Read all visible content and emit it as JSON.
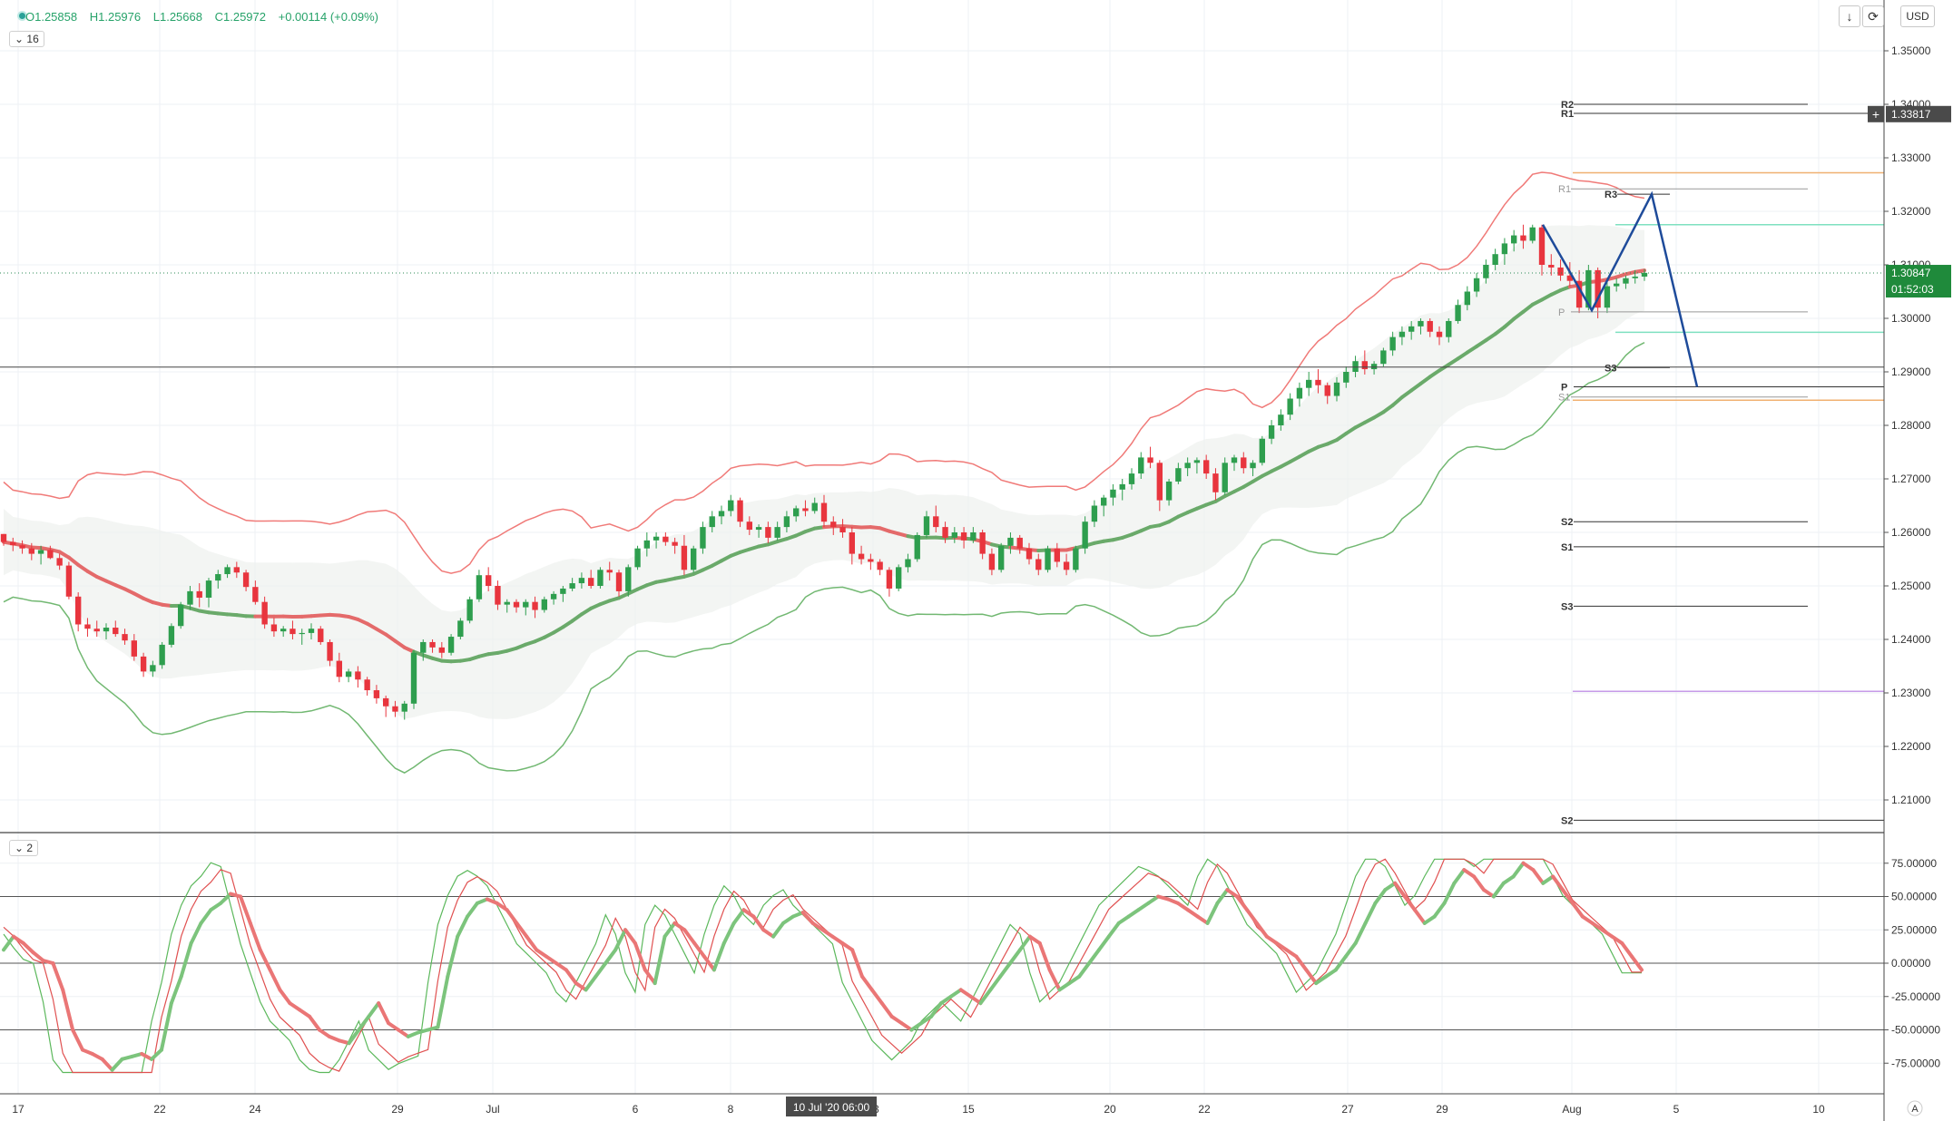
{
  "header": {
    "open": "O1.25858",
    "high": "H1.25976",
    "low": "L1.25668",
    "close": "C1.25972",
    "change": "+0.00114 (+0.09%)",
    "main_pane_toggle": "16",
    "osc_pane_toggle": "2",
    "currency": "USD",
    "crosshair_time": "10 Jul '20   06:00",
    "axis_button": "A"
  },
  "colors": {
    "bull": "#2e9e4e",
    "bear": "#e8353e",
    "upper_band": "#f07a78",
    "lower_band": "#72b872",
    "basis_green": "#6aaa6a",
    "basis_red": "#e46a6a",
    "pattern": "#1e4b9a",
    "orange": "#f0b070",
    "teal": "#7ee0c0",
    "violet": "#c79be8"
  },
  "chart_data": {
    "type": "candlestick",
    "symbol_quote": "USD",
    "price_range": [
      1.2,
      1.355
    ],
    "price_ticks": [
      "1.35000",
      "1.34000",
      "1.33000",
      "1.32000",
      "1.31000",
      "1.30000",
      "1.29000",
      "1.28000",
      "1.27000",
      "1.26000",
      "1.25000",
      "1.24000",
      "1.23000",
      "1.22000",
      "1.21000"
    ],
    "x_ticks": [
      "17",
      "22",
      "24",
      "29",
      "Jul",
      "6",
      "8",
      "13",
      "15",
      "20",
      "22",
      "27",
      "29",
      "Aug",
      "5",
      "10"
    ],
    "current_price": "1.30847",
    "countdown": "01:52:03",
    "crosshair_price": "1.33817",
    "candles": [
      [
        1.2597,
        1.2597,
        1.2575,
        1.2582
      ],
      [
        1.2582,
        1.259,
        1.2565,
        1.2576
      ],
      [
        1.2576,
        1.2585,
        1.256,
        1.257
      ],
      [
        1.257,
        1.258,
        1.2548,
        1.256
      ],
      [
        1.256,
        1.2575,
        1.254,
        1.2567
      ],
      [
        1.2567,
        1.2575,
        1.255,
        1.2552
      ],
      [
        1.2552,
        1.256,
        1.253,
        1.2538
      ],
      [
        1.2538,
        1.2545,
        1.2475,
        1.248
      ],
      [
        1.248,
        1.2488,
        1.2415,
        1.2428
      ],
      [
        1.2428,
        1.244,
        1.2405,
        1.242
      ],
      [
        1.242,
        1.2435,
        1.2405,
        1.2415
      ],
      [
        1.2415,
        1.243,
        1.24,
        1.2422
      ],
      [
        1.2422,
        1.2435,
        1.2405,
        1.241
      ],
      [
        1.241,
        1.242,
        1.239,
        1.2398
      ],
      [
        1.2398,
        1.241,
        1.236,
        1.2368
      ],
      [
        1.2368,
        1.2375,
        1.233,
        1.234
      ],
      [
        1.234,
        1.236,
        1.233,
        1.2352
      ],
      [
        1.2352,
        1.2395,
        1.2345,
        1.239
      ],
      [
        1.239,
        1.243,
        1.2385,
        1.2425
      ],
      [
        1.2425,
        1.247,
        1.242,
        1.2465
      ],
      [
        1.2465,
        1.25,
        1.2455,
        1.249
      ],
      [
        1.249,
        1.2505,
        1.246,
        1.2478
      ],
      [
        1.2478,
        1.2515,
        1.246,
        1.251
      ],
      [
        1.251,
        1.253,
        1.2495,
        1.2522
      ],
      [
        1.2522,
        1.254,
        1.2515,
        1.2535
      ],
      [
        1.2535,
        1.2545,
        1.2515,
        1.2525
      ],
      [
        1.2525,
        1.253,
        1.249,
        1.2498
      ],
      [
        1.2498,
        1.251,
        1.2465,
        1.247
      ],
      [
        1.247,
        1.248,
        1.242,
        1.2428
      ],
      [
        1.2428,
        1.244,
        1.2405,
        1.2415
      ],
      [
        1.2415,
        1.2425,
        1.2405,
        1.242
      ],
      [
        1.242,
        1.2435,
        1.24,
        1.241
      ],
      [
        1.241,
        1.242,
        1.239,
        1.2412
      ],
      [
        1.2412,
        1.243,
        1.24,
        1.242
      ],
      [
        1.242,
        1.2425,
        1.239,
        1.2395
      ],
      [
        1.2395,
        1.24,
        1.235,
        1.236
      ],
      [
        1.236,
        1.2375,
        1.232,
        1.233
      ],
      [
        1.233,
        1.2345,
        1.232,
        1.234
      ],
      [
        1.234,
        1.235,
        1.231,
        1.2325
      ],
      [
        1.2325,
        1.233,
        1.2295,
        1.2305
      ],
      [
        1.2305,
        1.2315,
        1.228,
        1.229
      ],
      [
        1.229,
        1.2295,
        1.2255,
        1.2275
      ],
      [
        1.2275,
        1.2285,
        1.2255,
        1.2265
      ],
      [
        1.2265,
        1.2285,
        1.225,
        1.228
      ],
      [
        1.228,
        1.238,
        1.227,
        1.2375
      ],
      [
        1.2375,
        1.24,
        1.236,
        1.2395
      ],
      [
        1.2395,
        1.24,
        1.2375,
        1.2385
      ],
      [
        1.2385,
        1.2395,
        1.2365,
        1.2375
      ],
      [
        1.2375,
        1.241,
        1.237,
        1.2405
      ],
      [
        1.2405,
        1.244,
        1.24,
        1.2435
      ],
      [
        1.2435,
        1.248,
        1.243,
        1.2475
      ],
      [
        1.2475,
        1.253,
        1.247,
        1.252
      ],
      [
        1.252,
        1.2535,
        1.249,
        1.25
      ],
      [
        1.25,
        1.251,
        1.2455,
        1.2465
      ],
      [
        1.2465,
        1.2475,
        1.245,
        1.247
      ],
      [
        1.247,
        1.2475,
        1.245,
        1.246
      ],
      [
        1.246,
        1.2475,
        1.2445,
        1.247
      ],
      [
        1.247,
        1.248,
        1.244,
        1.2455
      ],
      [
        1.2455,
        1.248,
        1.245,
        1.2475
      ],
      [
        1.2475,
        1.249,
        1.2465,
        1.2485
      ],
      [
        1.2485,
        1.25,
        1.247,
        1.2495
      ],
      [
        1.2495,
        1.2515,
        1.249,
        1.2505
      ],
      [
        1.2505,
        1.2525,
        1.2495,
        1.2515
      ],
      [
        1.2515,
        1.253,
        1.2495,
        1.25
      ],
      [
        1.25,
        1.2535,
        1.2495,
        1.253
      ],
      [
        1.253,
        1.2545,
        1.251,
        1.2525
      ],
      [
        1.2525,
        1.253,
        1.248,
        1.249
      ],
      [
        1.249,
        1.254,
        1.248,
        1.2535
      ],
      [
        1.2535,
        1.2575,
        1.253,
        1.257
      ],
      [
        1.257,
        1.26,
        1.2555,
        1.2585
      ],
      [
        1.2585,
        1.26,
        1.257,
        1.2592
      ],
      [
        1.2592,
        1.26,
        1.2575,
        1.2582
      ],
      [
        1.2582,
        1.259,
        1.256,
        1.2575
      ],
      [
        1.2575,
        1.2595,
        1.252,
        1.253
      ],
      [
        1.253,
        1.2575,
        1.2525,
        1.257
      ],
      [
        1.257,
        1.262,
        1.256,
        1.261
      ],
      [
        1.261,
        1.264,
        1.26,
        1.263
      ],
      [
        1.263,
        1.265,
        1.2615,
        1.264
      ],
      [
        1.264,
        1.267,
        1.263,
        1.266
      ],
      [
        1.266,
        1.2665,
        1.261,
        1.262
      ],
      [
        1.262,
        1.263,
        1.2595,
        1.2605
      ],
      [
        1.2605,
        1.2615,
        1.259,
        1.261
      ],
      [
        1.261,
        1.262,
        1.258,
        1.259
      ],
      [
        1.259,
        1.262,
        1.2585,
        1.261
      ],
      [
        1.261,
        1.264,
        1.26,
        1.263
      ],
      [
        1.263,
        1.265,
        1.262,
        1.2645
      ],
      [
        1.2645,
        1.266,
        1.263,
        1.264
      ],
      [
        1.264,
        1.2665,
        1.2635,
        1.2655
      ],
      [
        1.2655,
        1.267,
        1.261,
        1.262
      ],
      [
        1.262,
        1.263,
        1.2595,
        1.261
      ],
      [
        1.261,
        1.2625,
        1.259,
        1.26
      ],
      [
        1.26,
        1.261,
        1.254,
        1.256
      ],
      [
        1.256,
        1.2575,
        1.254,
        1.255
      ],
      [
        1.255,
        1.256,
        1.253,
        1.2545
      ],
      [
        1.2545,
        1.255,
        1.252,
        1.253
      ],
      [
        1.253,
        1.2535,
        1.248,
        1.2495
      ],
      [
        1.2495,
        1.254,
        1.249,
        1.2535
      ],
      [
        1.2535,
        1.256,
        1.2525,
        1.255
      ],
      [
        1.255,
        1.26,
        1.2545,
        1.2595
      ],
      [
        1.2595,
        1.264,
        1.259,
        1.263
      ],
      [
        1.263,
        1.265,
        1.26,
        1.261
      ],
      [
        1.261,
        1.262,
        1.258,
        1.259
      ],
      [
        1.259,
        1.261,
        1.258,
        1.26
      ],
      [
        1.26,
        1.261,
        1.257,
        1.2585
      ],
      [
        1.2585,
        1.261,
        1.258,
        1.26
      ],
      [
        1.26,
        1.2605,
        1.255,
        1.256
      ],
      [
        1.256,
        1.257,
        1.252,
        1.253
      ],
      [
        1.253,
        1.258,
        1.2525,
        1.2575
      ],
      [
        1.2575,
        1.26,
        1.256,
        1.259
      ],
      [
        1.259,
        1.2595,
        1.256,
        1.257
      ],
      [
        1.257,
        1.258,
        1.254,
        1.255
      ],
      [
        1.255,
        1.256,
        1.252,
        1.253
      ],
      [
        1.253,
        1.2575,
        1.2525,
        1.257
      ],
      [
        1.257,
        1.258,
        1.2535,
        1.2545
      ],
      [
        1.2545,
        1.256,
        1.252,
        1.253
      ],
      [
        1.253,
        1.2575,
        1.2525,
        1.257
      ],
      [
        1.257,
        1.263,
        1.256,
        1.262
      ],
      [
        1.262,
        1.266,
        1.261,
        1.265
      ],
      [
        1.265,
        1.267,
        1.263,
        1.2665
      ],
      [
        1.2665,
        1.269,
        1.265,
        1.268
      ],
      [
        1.268,
        1.27,
        1.266,
        1.269
      ],
      [
        1.269,
        1.272,
        1.268,
        1.271
      ],
      [
        1.271,
        1.275,
        1.27,
        1.274
      ],
      [
        1.274,
        1.276,
        1.272,
        1.273
      ],
      [
        1.273,
        1.2735,
        1.264,
        1.266
      ],
      [
        1.266,
        1.27,
        1.265,
        1.2695
      ],
      [
        1.2695,
        1.273,
        1.269,
        1.272
      ],
      [
        1.272,
        1.274,
        1.2705,
        1.273
      ],
      [
        1.273,
        1.274,
        1.271,
        1.2735
      ],
      [
        1.2735,
        1.2745,
        1.27,
        1.271
      ],
      [
        1.271,
        1.272,
        1.266,
        1.2675
      ],
      [
        1.2675,
        1.274,
        1.267,
        1.273
      ],
      [
        1.273,
        1.2745,
        1.2715,
        1.274
      ],
      [
        1.274,
        1.275,
        1.271,
        1.272
      ],
      [
        1.272,
        1.2735,
        1.2705,
        1.273
      ],
      [
        1.273,
        1.278,
        1.2725,
        1.2775
      ],
      [
        1.2775,
        1.281,
        1.2765,
        1.28
      ],
      [
        1.28,
        1.283,
        1.279,
        1.282
      ],
      [
        1.282,
        1.286,
        1.281,
        1.285
      ],
      [
        1.285,
        1.288,
        1.2835,
        1.287
      ],
      [
        1.287,
        1.29,
        1.2855,
        1.2885
      ],
      [
        1.2885,
        1.2905,
        1.286,
        1.2875
      ],
      [
        1.2875,
        1.288,
        1.284,
        1.2855
      ],
      [
        1.2855,
        1.289,
        1.2845,
        1.288
      ],
      [
        1.288,
        1.291,
        1.287,
        1.29
      ],
      [
        1.29,
        1.293,
        1.289,
        1.292
      ],
      [
        1.292,
        1.294,
        1.2895,
        1.2905
      ],
      [
        1.2905,
        1.292,
        1.2895,
        1.2915
      ],
      [
        1.2915,
        1.2945,
        1.291,
        1.294
      ],
      [
        1.294,
        1.2975,
        1.293,
        1.2965
      ],
      [
        1.2965,
        1.2985,
        1.295,
        1.2975
      ],
      [
        1.2975,
        1.2995,
        1.296,
        1.2985
      ],
      [
        1.2985,
        1.3,
        1.297,
        1.2995
      ],
      [
        1.2995,
        1.3,
        1.2965,
        1.2975
      ],
      [
        1.2975,
        1.2985,
        1.295,
        1.2965
      ],
      [
        1.2965,
        1.3,
        1.2955,
        1.2995
      ],
      [
        1.2995,
        1.3035,
        1.299,
        1.3025
      ],
      [
        1.3025,
        1.306,
        1.3015,
        1.305
      ],
      [
        1.305,
        1.3085,
        1.304,
        1.3075
      ],
      [
        1.3075,
        1.311,
        1.3065,
        1.31
      ],
      [
        1.31,
        1.313,
        1.309,
        1.312
      ],
      [
        1.312,
        1.315,
        1.31,
        1.314
      ],
      [
        1.314,
        1.3165,
        1.3125,
        1.3155
      ],
      [
        1.3155,
        1.3175,
        1.313,
        1.3145
      ],
      [
        1.3145,
        1.3175,
        1.314,
        1.317
      ],
      [
        1.317,
        1.3175,
        1.308,
        1.31
      ],
      [
        1.31,
        1.312,
        1.308,
        1.3095
      ],
      [
        1.3095,
        1.311,
        1.307,
        1.308
      ],
      [
        1.308,
        1.3105,
        1.306,
        1.307
      ],
      [
        1.307,
        1.309,
        1.301,
        1.302
      ],
      [
        1.302,
        1.31,
        1.3015,
        1.309
      ],
      [
        1.309,
        1.3095,
        1.3,
        1.302
      ],
      [
        1.302,
        1.307,
        1.301,
        1.306
      ],
      [
        1.306,
        1.3075,
        1.305,
        1.3065
      ],
      [
        1.3065,
        1.308,
        1.3055,
        1.3075
      ],
      [
        1.3075,
        1.309,
        1.3065,
        1.3078
      ],
      [
        1.3078,
        1.3092,
        1.307,
        1.3085
      ]
    ],
    "stochastic": {
      "range": [
        -90,
        90
      ],
      "ticks": [
        "75.00000",
        "50.00000",
        "25.00000",
        "0.00000",
        "-25.00000",
        "-50.00000",
        "-75.00000"
      ],
      "levels": [
        50,
        0,
        -50
      ],
      "smooth_line": [
        10,
        20,
        15,
        8,
        2,
        0,
        -20,
        -50,
        -65,
        -68,
        -72,
        -80,
        -72,
        -70,
        -68,
        -72,
        -65,
        -30,
        -10,
        15,
        30,
        40,
        45,
        52,
        50,
        30,
        10,
        -5,
        -20,
        -30,
        -35,
        -40,
        -50,
        -55,
        -58,
        -60,
        -50,
        -40,
        -30,
        -45,
        -50,
        -55,
        -52,
        -50,
        -48,
        -10,
        20,
        35,
        45,
        48,
        45,
        40,
        30,
        20,
        10,
        5,
        0,
        -5,
        -15,
        -20,
        -10,
        0,
        10,
        25,
        15,
        -5,
        -15,
        20,
        30,
        25,
        15,
        5,
        -5,
        15,
        30,
        40,
        35,
        25,
        20,
        30,
        35,
        38,
        30,
        25,
        20,
        15,
        10,
        -10,
        -20,
        -30,
        -40,
        -45,
        -50,
        -45,
        -40,
        -30,
        -25,
        -20,
        -25,
        -30,
        -20,
        -10,
        0,
        10,
        20,
        15,
        -5,
        -20,
        -15,
        -10,
        0,
        10,
        20,
        30,
        35,
        40,
        45,
        50,
        48,
        45,
        40,
        35,
        30,
        45,
        55,
        50,
        40,
        30,
        20,
        15,
        10,
        5,
        -5,
        -15,
        -10,
        -5,
        5,
        15,
        30,
        45,
        55,
        60,
        50,
        40,
        30,
        35,
        45,
        60,
        70,
        65,
        55,
        50,
        60,
        65,
        75,
        70,
        60,
        65,
        55,
        45,
        35,
        30,
        25,
        20,
        15,
        5,
        -5
      ]
    },
    "pivot_labels": [
      "R2",
      "R1",
      "R3",
      "R1",
      "P",
      "S3",
      "P",
      "S1",
      "S2",
      "S1",
      "S3",
      "S2"
    ]
  }
}
